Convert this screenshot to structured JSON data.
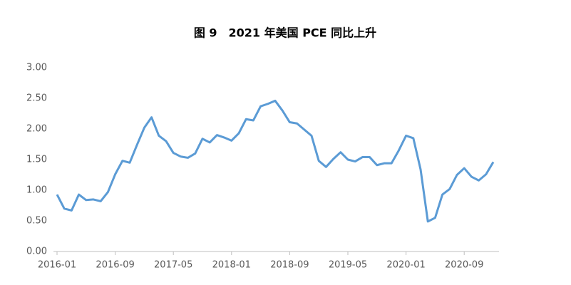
{
  "chart_data": {
    "type": "line",
    "title": "图 9　2021 年美国 PCE 同比上升",
    "categories": [
      "2016-01",
      null,
      null,
      null,
      null,
      null,
      null,
      null,
      "2016-09",
      null,
      null,
      null,
      null,
      null,
      null,
      null,
      "2017-05",
      null,
      null,
      null,
      null,
      null,
      null,
      null,
      "2018-01",
      null,
      null,
      null,
      null,
      null,
      null,
      null,
      "2018-09",
      null,
      null,
      null,
      null,
      null,
      null,
      null,
      "2019-05",
      null,
      null,
      null,
      null,
      null,
      null,
      null,
      "2020-01",
      null,
      null,
      null,
      null,
      null,
      null,
      null,
      "2020-09",
      null,
      null,
      null,
      null
    ],
    "series": [
      {
        "color": "#5b9bd5",
        "values": [
          0.93,
          0.7,
          0.67,
          0.93,
          0.84,
          0.85,
          0.82,
          0.97,
          1.26,
          1.48,
          1.45,
          1.74,
          2.02,
          2.19,
          1.89,
          1.8,
          1.61,
          1.55,
          1.53,
          1.6,
          1.84,
          1.78,
          1.9,
          1.86,
          1.81,
          1.93,
          2.16,
          2.14,
          2.37,
          2.41,
          2.46,
          2.3,
          2.11,
          2.09,
          1.99,
          1.89,
          1.48,
          1.38,
          1.51,
          1.62,
          1.5,
          1.47,
          1.54,
          1.54,
          1.41,
          1.44,
          1.44,
          1.65,
          1.89,
          1.85,
          1.34,
          0.49,
          0.55,
          0.93,
          1.02,
          1.25,
          1.36,
          1.22,
          1.16,
          1.26,
          1.46
        ]
      }
    ],
    "ylim": [
      0,
      3
    ],
    "yticks": [
      {
        "value": 0,
        "label": "0.00"
      },
      {
        "value": 0.5,
        "label": "0.50"
      },
      {
        "value": 1,
        "label": "1.00"
      },
      {
        "value": 1.5,
        "label": "1.50"
      },
      {
        "value": 2,
        "label": "2.00"
      },
      {
        "value": 2.5,
        "label": "2.50"
      },
      {
        "value": 3,
        "label": "3.00"
      }
    ],
    "grid": false
  }
}
